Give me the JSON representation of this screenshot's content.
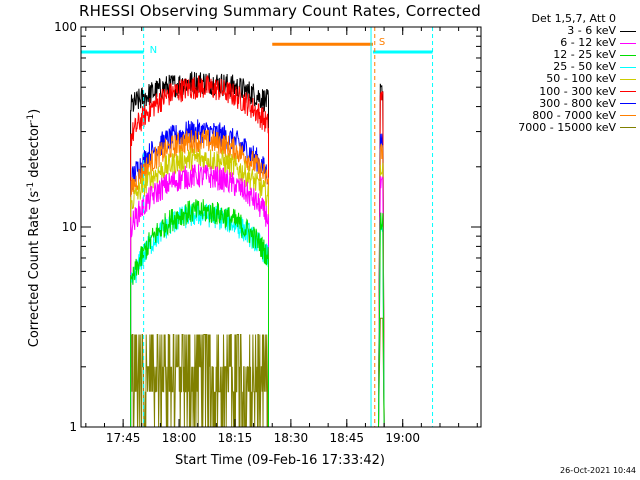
{
  "title": "RHESSI Observing Summary Count Rates, Corrected",
  "xlabel": "Start Time (09-Feb-16 17:33:42)",
  "ylabel_main": "Corrected Count Rate (s",
  "ylabel_sup1": "-1",
  "ylabel_mid": " detector",
  "ylabel_sup2": "-1",
  "ylabel_end": ")",
  "date_stamp": "26-Oct-2021 10:44",
  "legend": {
    "title": "Det 1,5,7, Att 0",
    "entries": [
      {
        "label": "3 - 6 keV",
        "color": "#000000"
      },
      {
        "label": "6 - 12 keV",
        "color": "#ff00ff"
      },
      {
        "label": "12 - 25 keV",
        "color": "#00dd00"
      },
      {
        "label": "25 - 50 keV",
        "color": "#00ffff"
      },
      {
        "label": "50 - 100 keV",
        "color": "#cccc00"
      },
      {
        "label": "100 - 300 keV",
        "color": "#ff0000"
      },
      {
        "label": "300 - 800 keV",
        "color": "#0000ff"
      },
      {
        "label": "800 - 7000 keV",
        "color": "#ff7f00"
      },
      {
        "label": "7000 - 15000 keV",
        "color": "#808000"
      }
    ]
  },
  "chart_data": {
    "type": "line",
    "title": "RHESSI Observing Summary Count Rates, Corrected",
    "xlabel": "Start Time (09-Feb-16 17:33:42)",
    "ylabel": "Corrected Count Rate (s-1 detector-1)",
    "yscale": "log",
    "ylim": [
      1,
      100
    ],
    "xlim": [
      "17:33:42",
      "19:21:00"
    ],
    "x_ticks": [
      "17:45",
      "18:00",
      "18:15",
      "18:30",
      "18:45",
      "19:00"
    ],
    "y_ticks": [
      "1",
      "10",
      "100"
    ],
    "grid": false,
    "legend_position": "right",
    "data_start": "17:47:00",
    "data_end": "18:24:00",
    "series": [
      {
        "name": "3 - 6 keV",
        "color": "#000000",
        "start": 40,
        "peak": 53,
        "end": 42
      },
      {
        "name": "6 - 12 keV",
        "color": "#ff00ff",
        "start": 10,
        "peak": 18,
        "end": 11
      },
      {
        "name": "12 - 25 keV",
        "color": "#00dd00",
        "start": 5,
        "peak": 12,
        "end": 7
      },
      {
        "name": "25 - 50 keV",
        "color": "#00ffff",
        "start": 5,
        "peak": 11.5,
        "end": 7
      },
      {
        "name": "50 - 100 keV",
        "color": "#cccc00",
        "start": 13,
        "peak": 22,
        "end": 14
      },
      {
        "name": "100 - 300 keV",
        "color": "#ff0000",
        "start": 28,
        "peak": 50,
        "end": 32
      },
      {
        "name": "300 - 800 keV",
        "color": "#0000ff",
        "start": 17,
        "peak": 30,
        "end": 18
      },
      {
        "name": "800 - 7000 keV",
        "color": "#ff7f00",
        "start": 15,
        "peak": 27,
        "end": 17
      },
      {
        "name": "7000 - 15000 keV",
        "color": "#808000",
        "start": 1.5,
        "peak": 2.9,
        "end": 1.5
      }
    ],
    "flags": [
      {
        "label": "N",
        "color": "#00ffff",
        "level": 75,
        "start": "17:33:42",
        "end": "17:50:30"
      },
      {
        "label": "S",
        "color": "#ff7f00",
        "level": 82,
        "start": "18:25:00",
        "end": "18:52:00"
      },
      {
        "label": "",
        "color": "#00ffff",
        "level": 75,
        "start": "18:52:00",
        "end": "19:08:00"
      }
    ],
    "vertical_markers": [
      {
        "time": "17:50:30",
        "color": "#00ffff",
        "style": "dashed"
      },
      {
        "time": "18:51:30",
        "color": "#00ffff",
        "style": "solid"
      },
      {
        "time": "18:52:30",
        "color": "#ff7f00",
        "style": "dashed"
      },
      {
        "time": "19:08:00",
        "color": "#00ffff",
        "style": "dashed"
      }
    ]
  }
}
